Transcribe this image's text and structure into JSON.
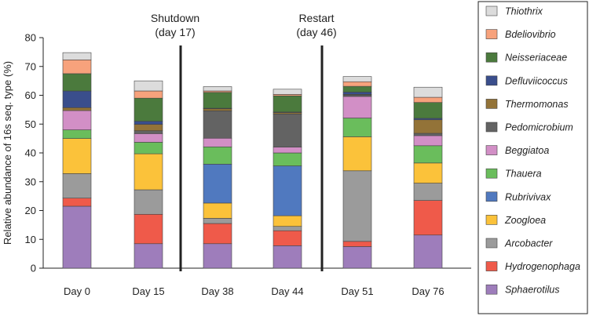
{
  "chart_data": {
    "type": "bar",
    "stacked": true,
    "ylabel": "Relative abundance of 16s seq. type (%)",
    "xlabel": "",
    "ylim": [
      0,
      80
    ],
    "yticks": [
      0,
      10,
      20,
      30,
      40,
      50,
      60,
      70,
      80
    ],
    "categories": [
      "Day 0",
      "Day 15",
      "Day 38",
      "Day 44",
      "Day 51",
      "Day 76"
    ],
    "annotations": [
      {
        "label": "Shutdown",
        "sublabel": "(day 17)",
        "between": [
          "Day 15",
          "Day 38"
        ]
      },
      {
        "label": "Restart",
        "sublabel": "(day 46)",
        "between": [
          "Day 44",
          "Day 51"
        ]
      }
    ],
    "series": [
      {
        "name": "Sphaerotilus",
        "color": "#9e7dbb",
        "values": [
          21.5,
          8.5,
          8.5,
          7.8,
          7.5,
          11.5
        ]
      },
      {
        "name": "Hydrogenophaga",
        "color": "#ef5a4a",
        "values": [
          2.8,
          10.2,
          7.0,
          5.2,
          1.8,
          12.0
        ]
      },
      {
        "name": "Arcobacter",
        "color": "#9b9b9b",
        "values": [
          8.5,
          8.5,
          1.8,
          1.5,
          24.5,
          6.0
        ]
      },
      {
        "name": "Zoogloea",
        "color": "#fbc23a",
        "values": [
          12.2,
          12.5,
          5.3,
          3.7,
          11.8,
          7.0
        ]
      },
      {
        "name": "Rubrivivax",
        "color": "#5079bf",
        "values": [
          0,
          0,
          13.5,
          17.3,
          0,
          0
        ]
      },
      {
        "name": "Thauera",
        "color": "#6abd5c",
        "values": [
          3.0,
          4.0,
          6.0,
          4.5,
          6.5,
          6.0
        ]
      },
      {
        "name": "Beggiatoa",
        "color": "#d28fc6",
        "values": [
          6.7,
          3.0,
          3.0,
          2.0,
          7.5,
          3.5
        ]
      },
      {
        "name": "Pedomicrobium",
        "color": "#636363",
        "values": [
          0,
          1.0,
          9.5,
          11.5,
          0.5,
          0.8
        ]
      },
      {
        "name": "Thermomonas",
        "color": "#937338",
        "values": [
          1.0,
          2.2,
          0.7,
          0.5,
          0.2,
          4.7
        ]
      },
      {
        "name": "Defluviicoccus",
        "color": "#3a4e8c",
        "values": [
          5.8,
          1.1,
          0.2,
          0.2,
          0.8,
          0.5
        ]
      },
      {
        "name": "Neisseriaceae",
        "color": "#4b7a3d",
        "values": [
          6.0,
          8.0,
          5.5,
          5.6,
          2.0,
          5.5
        ]
      },
      {
        "name": "Bdeliovibrio",
        "color": "#f7a27c",
        "values": [
          4.8,
          2.5,
          0.5,
          0.5,
          1.6,
          1.8
        ]
      },
      {
        "name": "Thiothrix",
        "color": "#dcdcdc",
        "values": [
          2.5,
          3.5,
          1.5,
          1.8,
          1.8,
          3.5
        ]
      }
    ]
  }
}
